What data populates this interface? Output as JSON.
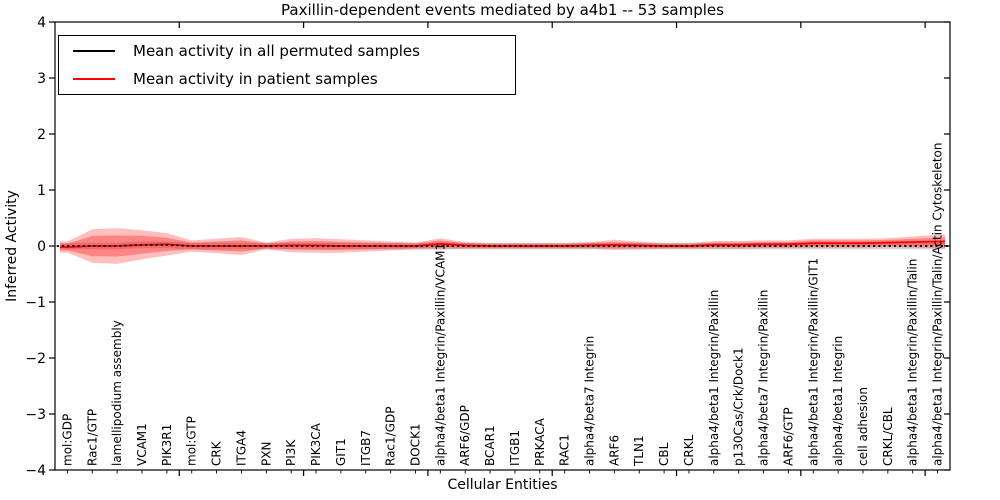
{
  "chart_data": {
    "type": "line",
    "title": "Paxillin-dependent events mediated by a4b1 -- 53 samples",
    "xlabel": "Cellular Entities",
    "ylabel": "Inferred Activity",
    "ylim": [
      -4,
      4
    ],
    "yticks": [
      4,
      3,
      2,
      1,
      0,
      -1,
      -2,
      -3,
      -4
    ],
    "x_major_ticks": [
      5,
      10,
      15,
      20,
      25,
      30,
      35
    ],
    "grid": false,
    "legend_position": "upper left",
    "categories": [
      "mol:GDP",
      "Rac1/GTP",
      "lamellipodium assembly",
      "VCAM1",
      "PIK3R1",
      "mol:GTP",
      "CRK",
      "ITGA4",
      "PXN",
      "PI3K",
      "PIK3CA",
      "GIT1",
      "ITGB7",
      "Rac1/GDP",
      "DOCK1",
      "alpha4/beta1 Integrin/Paxillin/VCAM1",
      "ARF6/GDP",
      "BCAR1",
      "ITGB1",
      "PRKACA",
      "RAC1",
      "alpha4/beta7 Integrin",
      "ARF6",
      "TLN1",
      "CBL",
      "CRKL",
      "alpha4/beta1 Integrin/Paxillin",
      "p130Cas/Crk/Dock1",
      "alpha4/beta7 Integrin/Paxillin",
      "ARF6/GTP",
      "alpha4/beta1 Integrin/Paxillin/GIT1",
      "alpha4/beta1 Integrin",
      "cell adhesion",
      "CRKL/CBL",
      "alpha4/beta1 Integrin/Paxillin/Talin",
      "alpha4/beta1 Integrin/Paxillin/Talin/Actin Cytoskeleton"
    ],
    "series": [
      {
        "name": "Mean activity in all permuted samples",
        "color": "#000000",
        "style": "dotted",
        "values": [
          0,
          0,
          0,
          0.02,
          0.02,
          0,
          0,
          0,
          0,
          0,
          0,
          0,
          0,
          0,
          0,
          0,
          0,
          0,
          0,
          0,
          0,
          0,
          0,
          0,
          0,
          0,
          0,
          0,
          0,
          0,
          0,
          0,
          0,
          0,
          0,
          0
        ]
      },
      {
        "name": "Mean activity in patient samples",
        "color": "#ff0000",
        "style": "solid",
        "values": [
          -0.02,
          0,
          0,
          0.02,
          0.03,
          0,
          0,
          0,
          0,
          0.01,
          0.01,
          0,
          0,
          0,
          0,
          0.04,
          0.01,
          0,
          0,
          0,
          0,
          0.01,
          0.02,
          0.01,
          0,
          0,
          0.02,
          0.02,
          0.03,
          0.03,
          0.05,
          0.05,
          0.05,
          0.06,
          0.07,
          0.08
        ]
      }
    ],
    "bands": [
      {
        "name": "patient activity spread (outer)",
        "color": "#ff0000",
        "opacity": 0.25,
        "center_series": 1,
        "halfwidths": [
          0.1,
          0.3,
          0.32,
          0.26,
          0.2,
          0.1,
          0.13,
          0.16,
          0.06,
          0.12,
          0.13,
          0.12,
          0.1,
          0.08,
          0.06,
          0.1,
          0.06,
          0.05,
          0.05,
          0.05,
          0.05,
          0.06,
          0.09,
          0.07,
          0.05,
          0.05,
          0.07,
          0.07,
          0.07,
          0.07,
          0.08,
          0.08,
          0.08,
          0.08,
          0.1,
          0.12
        ]
      },
      {
        "name": "patient activity spread (inner)",
        "color": "#ff0000",
        "opacity": 0.3,
        "center_series": 1,
        "halfwidths": [
          0.06,
          0.18,
          0.19,
          0.16,
          0.12,
          0.06,
          0.08,
          0.1,
          0.04,
          0.07,
          0.08,
          0.07,
          0.06,
          0.05,
          0.04,
          0.06,
          0.04,
          0.03,
          0.03,
          0.03,
          0.03,
          0.04,
          0.05,
          0.04,
          0.03,
          0.03,
          0.04,
          0.04,
          0.04,
          0.04,
          0.05,
          0.05,
          0.05,
          0.05,
          0.06,
          0.07
        ]
      },
      {
        "name": "permuted activity spread",
        "color": "#999999",
        "opacity": 0.4,
        "center_series": 0,
        "halfwidths": [
          0.06,
          0.06,
          0.06,
          0.06,
          0.06,
          0.06,
          0.06,
          0.06,
          0.06,
          0.06,
          0.06,
          0.06,
          0.06,
          0.06,
          0.06,
          0.06,
          0.06,
          0.06,
          0.06,
          0.06,
          0.06,
          0.06,
          0.06,
          0.06,
          0.06,
          0.06,
          0.06,
          0.06,
          0.06,
          0.06,
          0.06,
          0.06,
          0.06,
          0.06,
          0.06,
          0.06
        ]
      }
    ]
  }
}
